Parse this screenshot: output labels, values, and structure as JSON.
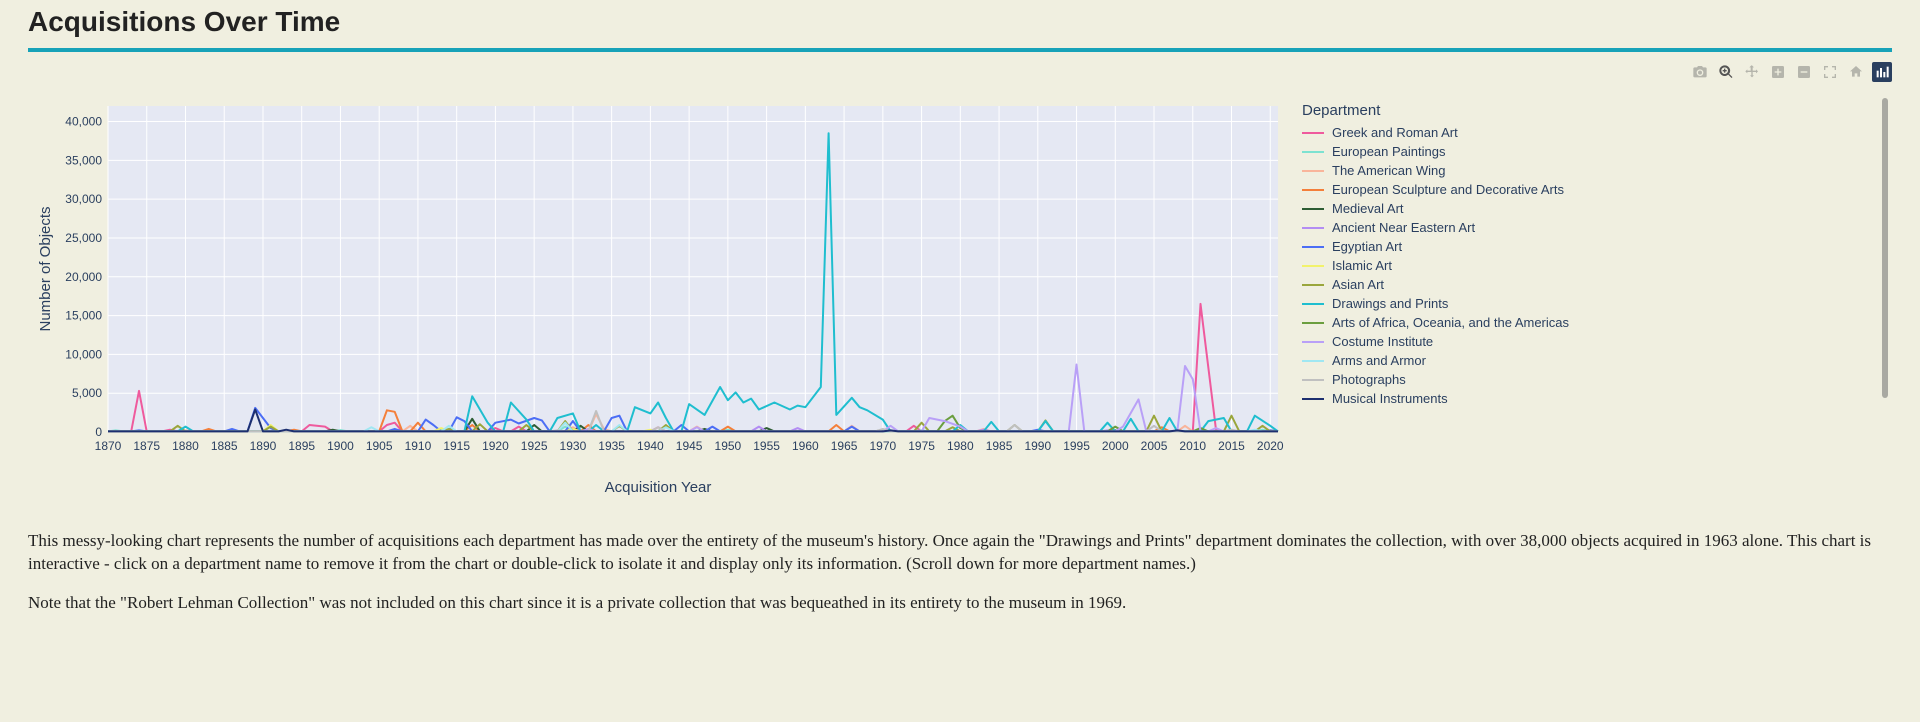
{
  "title": "Acquisitions Over Time",
  "rule_color": "#17a2b8",
  "toolbar": {
    "icons": [
      "camera",
      "zoom",
      "pan",
      "zoom-in",
      "zoom-out",
      "autoscale",
      "reset",
      "plotly"
    ]
  },
  "chart": {
    "type": "line",
    "background_color": "#f0efe0",
    "plot_background_color": "#e5e8f3",
    "grid_color": "#ffffff",
    "zero_line_color": "#ffffff",
    "axis_label_color": "#2a3f5f",
    "tick_fontsize": 12,
    "xlabel": "Acquisition Year",
    "ylabel": "Number of Objects",
    "xlim": [
      1870,
      2021
    ],
    "ylim": [
      0,
      42000
    ],
    "xtick_step": 5,
    "xticks": [
      1870,
      1875,
      1880,
      1885,
      1890,
      1895,
      1900,
      1905,
      1910,
      1915,
      1920,
      1925,
      1930,
      1935,
      1940,
      1945,
      1950,
      1955,
      1960,
      1965,
      1970,
      1975,
      1980,
      1985,
      1990,
      1995,
      2000,
      2005,
      2010,
      2015,
      2020
    ],
    "yticks": [
      0,
      5000,
      10000,
      15000,
      20000,
      25000,
      30000,
      35000,
      40000
    ],
    "line_width": 2,
    "legend_title": "Department",
    "series": [
      {
        "name": "Greek and Roman Art",
        "color": "#ef5a9d",
        "points": [
          [
            1874,
            5300
          ],
          [
            1878,
            300
          ],
          [
            1896,
            900
          ],
          [
            1898,
            700
          ],
          [
            1906,
            900
          ],
          [
            1907,
            1200
          ],
          [
            1920,
            500
          ],
          [
            1923,
            700
          ],
          [
            1941,
            600
          ],
          [
            1974,
            800
          ],
          [
            2011,
            16500
          ],
          [
            2013,
            300
          ]
        ]
      },
      {
        "name": "European Paintings",
        "color": "#7de2d1",
        "points": [
          [
            1871,
            200
          ],
          [
            1900,
            250
          ],
          [
            1913,
            400
          ],
          [
            1929,
            700
          ],
          [
            1950,
            300
          ],
          [
            1975,
            200
          ],
          [
            2000,
            150
          ],
          [
            2019,
            300
          ]
        ]
      },
      {
        "name": "The American Wing",
        "color": "#f9b59b",
        "points": [
          [
            1880,
            200
          ],
          [
            1909,
            800
          ],
          [
            1930,
            600
          ],
          [
            1933,
            2300
          ],
          [
            1934,
            400
          ],
          [
            1946,
            700
          ],
          [
            1966,
            800
          ],
          [
            1983,
            400
          ],
          [
            2009,
            800
          ],
          [
            2020,
            200
          ]
        ]
      },
      {
        "name": "European Sculpture and Decorative Arts",
        "color": "#f47f3a",
        "points": [
          [
            1883,
            400
          ],
          [
            1894,
            300
          ],
          [
            1906,
            2800
          ],
          [
            1907,
            2600
          ],
          [
            1910,
            1200
          ],
          [
            1917,
            900
          ],
          [
            1932,
            900
          ],
          [
            1950,
            700
          ],
          [
            1964,
            900
          ],
          [
            2006,
            600
          ],
          [
            2020,
            200
          ]
        ]
      },
      {
        "name": "Medieval Art",
        "color": "#2e5d34",
        "points": [
          [
            1899,
            300
          ],
          [
            1917,
            1700
          ],
          [
            1925,
            900
          ],
          [
            1931,
            800
          ],
          [
            1947,
            400
          ],
          [
            1955,
            500
          ],
          [
            2000,
            200
          ]
        ]
      },
      {
        "name": "Ancient Near Eastern Art",
        "color": "#b38df3",
        "points": [
          [
            1886,
            200
          ],
          [
            1930,
            400
          ],
          [
            1954,
            700
          ],
          [
            1959,
            500
          ],
          [
            1983,
            300
          ],
          [
            1999,
            200
          ]
        ]
      },
      {
        "name": "Egyptian Art",
        "color": "#4c6ef5",
        "points": [
          [
            1874,
            200
          ],
          [
            1886,
            400
          ],
          [
            1889,
            3100
          ],
          [
            1891,
            500
          ],
          [
            1907,
            400
          ],
          [
            1911,
            1600
          ],
          [
            1912,
            900
          ],
          [
            1915,
            1900
          ],
          [
            1916,
            1400
          ],
          [
            1920,
            1200
          ],
          [
            1922,
            1600
          ],
          [
            1923,
            1100
          ],
          [
            1925,
            1800
          ],
          [
            1926,
            1500
          ],
          [
            1930,
            1400
          ],
          [
            1935,
            1800
          ],
          [
            1936,
            2100
          ],
          [
            1944,
            900
          ],
          [
            1948,
            700
          ],
          [
            1966,
            700
          ],
          [
            1990,
            300
          ],
          [
            2020,
            200
          ]
        ]
      },
      {
        "name": "Islamic Art",
        "color": "#f2f26b",
        "points": [
          [
            1891,
            900
          ],
          [
            1913,
            500
          ],
          [
            1930,
            400
          ],
          [
            1940,
            300
          ],
          [
            1970,
            300
          ],
          [
            2015,
            300
          ]
        ]
      },
      {
        "name": "Asian Art",
        "color": "#9aa63c",
        "points": [
          [
            1879,
            800
          ],
          [
            1891,
            700
          ],
          [
            1914,
            400
          ],
          [
            1918,
            1000
          ],
          [
            1924,
            900
          ],
          [
            1929,
            1400
          ],
          [
            1936,
            800
          ],
          [
            1942,
            900
          ],
          [
            1975,
            1200
          ],
          [
            1979,
            600
          ],
          [
            1987,
            900
          ],
          [
            1991,
            1500
          ],
          [
            2005,
            2100
          ],
          [
            2015,
            2100
          ],
          [
            2019,
            800
          ]
        ]
      },
      {
        "name": "Drawings and Prints",
        "color": "#1fbecf",
        "points": [
          [
            1880,
            700
          ],
          [
            1917,
            4600
          ],
          [
            1919,
            1200
          ],
          [
            1922,
            3800
          ],
          [
            1924,
            1600
          ],
          [
            1928,
            1800
          ],
          [
            1930,
            2400
          ],
          [
            1933,
            900
          ],
          [
            1938,
            3200
          ],
          [
            1940,
            2400
          ],
          [
            1941,
            3800
          ],
          [
            1942,
            1800
          ],
          [
            1945,
            3600
          ],
          [
            1947,
            2200
          ],
          [
            1949,
            5800
          ],
          [
            1950,
            4100
          ],
          [
            1951,
            5100
          ],
          [
            1952,
            3800
          ],
          [
            1953,
            4300
          ],
          [
            1954,
            2900
          ],
          [
            1956,
            3800
          ],
          [
            1958,
            2900
          ],
          [
            1959,
            3400
          ],
          [
            1960,
            3200
          ],
          [
            1962,
            5800
          ],
          [
            1963,
            38500
          ],
          [
            1964,
            2200
          ],
          [
            1966,
            4400
          ],
          [
            1967,
            3200
          ],
          [
            1968,
            2800
          ],
          [
            1970,
            1600
          ],
          [
            1980,
            900
          ],
          [
            1984,
            1300
          ],
          [
            1991,
            1400
          ],
          [
            1999,
            1200
          ],
          [
            2002,
            1700
          ],
          [
            2007,
            1800
          ],
          [
            2012,
            1400
          ],
          [
            2014,
            1800
          ],
          [
            2018,
            2100
          ],
          [
            2020,
            800
          ]
        ]
      },
      {
        "name": "Arts of Africa, Oceania, and the Americas",
        "color": "#6b9e3f",
        "points": [
          [
            1970,
            300
          ],
          [
            1978,
            1400
          ],
          [
            1979,
            2100
          ],
          [
            1980,
            500
          ],
          [
            2000,
            700
          ],
          [
            2011,
            500
          ]
        ]
      },
      {
        "name": "Costume Institute",
        "color": "#b9a0f7",
        "points": [
          [
            1932,
            400
          ],
          [
            1946,
            600
          ],
          [
            1971,
            800
          ],
          [
            1976,
            1800
          ],
          [
            1978,
            1400
          ],
          [
            1980,
            700
          ],
          [
            1995,
            8700
          ],
          [
            2001,
            700
          ],
          [
            2003,
            4200
          ],
          [
            2009,
            8500
          ],
          [
            2010,
            6800
          ],
          [
            2013,
            500
          ]
        ]
      },
      {
        "name": "Arms and Armor",
        "color": "#a0e7f2",
        "points": [
          [
            1904,
            600
          ],
          [
            1914,
            800
          ],
          [
            1929,
            1200
          ],
          [
            1936,
            900
          ],
          [
            1942,
            600
          ],
          [
            2018,
            300
          ]
        ]
      },
      {
        "name": "Photographs",
        "color": "#c0c0c0",
        "points": [
          [
            1928,
            200
          ],
          [
            1933,
            2700
          ],
          [
            1941,
            600
          ],
          [
            1970,
            400
          ],
          [
            1987,
            900
          ],
          [
            2005,
            800
          ],
          [
            2015,
            300
          ]
        ]
      },
      {
        "name": "Musical Instruments",
        "color": "#1d2f6f",
        "points": [
          [
            1889,
            2900
          ],
          [
            1893,
            300
          ],
          [
            1971,
            200
          ],
          [
            2008,
            200
          ]
        ]
      }
    ]
  },
  "paragraphs": [
    "This messy-looking chart represents the number of acquisitions each department has made over the entirety of the museum's history. Once again the \"Drawings and Prints\" department dominates the collection, with over 38,000 objects acquired in 1963 alone. This chart is interactive - click on a department name to remove it from the chart or double-click to isolate it and display only its information. (Scroll down for more department names.)",
    "Note that the \"Robert Lehman Collection\" was not included on this chart since it is a private collection that was bequeathed in its entirety to the museum in 1969."
  ]
}
